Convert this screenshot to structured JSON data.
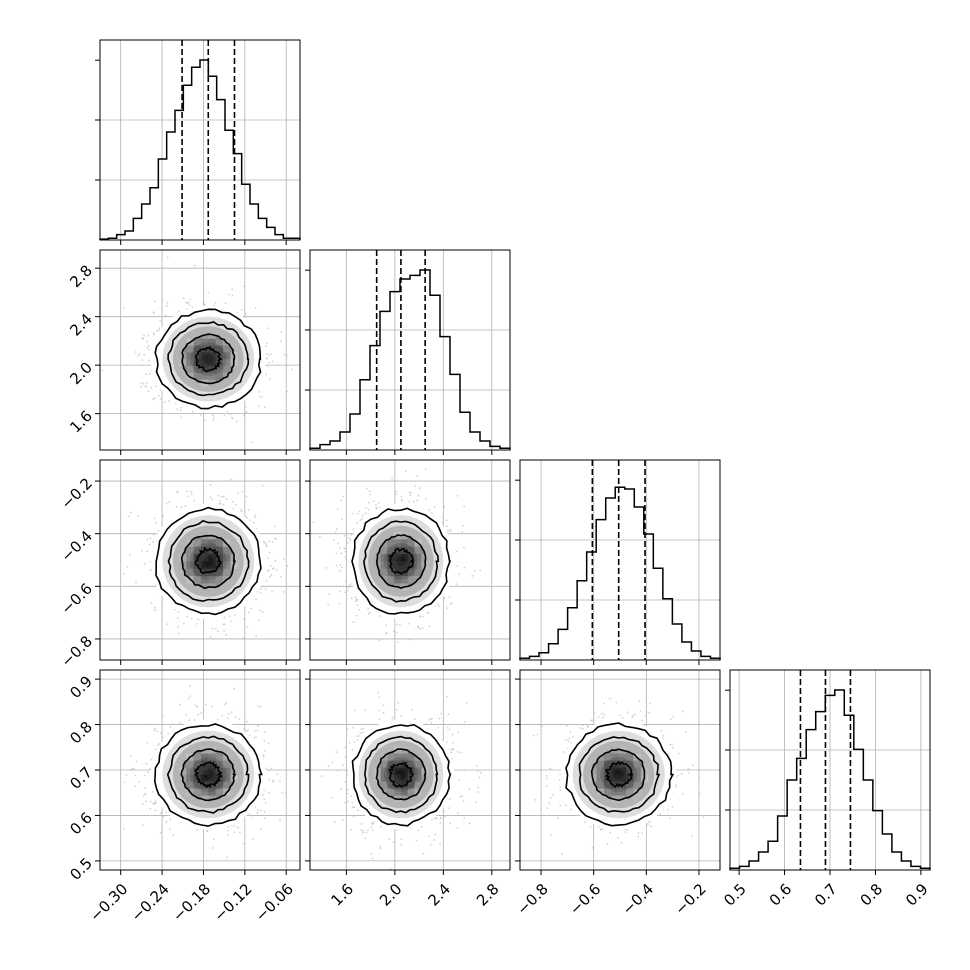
{
  "chart_data": {
    "type": "corner",
    "quantile_lines": "dashed",
    "grid": true,
    "parameters": [
      {
        "range": [
          -0.33,
          -0.04
        ],
        "ticks": [
          "−0.30",
          "−0.24",
          "−0.18",
          "−0.12",
          "−0.06"
        ],
        "tick_values": [
          -0.3,
          -0.24,
          -0.18,
          -0.12,
          -0.06
        ],
        "quantiles": [
          -0.211,
          -0.173,
          -0.135
        ],
        "mean": -0.173,
        "sd": 0.038,
        "histogram": [
          0.005,
          0.01,
          0.03,
          0.05,
          0.12,
          0.2,
          0.29,
          0.45,
          0.6,
          0.72,
          0.86,
          0.96,
          1.0,
          0.91,
          0.78,
          0.61,
          0.48,
          0.31,
          0.2,
          0.12,
          0.07,
          0.03,
          0.01,
          0.01
        ]
      },
      {
        "range": [
          1.3,
          2.95
        ],
        "ticks": [
          "1.6",
          "2.0",
          "2.4",
          "2.8"
        ],
        "tick_values": [
          1.6,
          2.0,
          2.4,
          2.8
        ],
        "quantiles": [
          1.85,
          2.05,
          2.25
        ],
        "mean": 2.05,
        "sd": 0.2,
        "histogram": [
          0.01,
          0.03,
          0.05,
          0.1,
          0.2,
          0.39,
          0.58,
          0.77,
          0.88,
          0.95,
          0.97,
          1.0,
          0.86,
          0.63,
          0.42,
          0.21,
          0.1,
          0.05,
          0.02,
          0.01
        ]
      },
      {
        "range": [
          -0.88,
          -0.12
        ],
        "ticks": [
          "−0.8",
          "−0.6",
          "−0.4",
          "−0.2"
        ],
        "tick_values": [
          -0.8,
          -0.6,
          -0.4,
          -0.2
        ],
        "quantiles": [
          -0.605,
          -0.505,
          -0.405
        ],
        "mean": -0.505,
        "sd": 0.1,
        "histogram": [
          0.01,
          0.02,
          0.04,
          0.09,
          0.17,
          0.29,
          0.44,
          0.6,
          0.78,
          0.9,
          0.96,
          0.95,
          0.85,
          0.7,
          0.51,
          0.34,
          0.2,
          0.1,
          0.05,
          0.02,
          0.01
        ]
      },
      {
        "range": [
          0.48,
          0.92
        ],
        "ticks": [
          "0.5",
          "0.6",
          "0.7",
          "0.8",
          "0.9"
        ],
        "tick_values": [
          0.5,
          0.6,
          0.7,
          0.8,
          0.9
        ],
        "quantiles": [
          0.635,
          0.69,
          0.745
        ],
        "mean": 0.69,
        "sd": 0.055,
        "histogram": [
          0.01,
          0.02,
          0.05,
          0.1,
          0.16,
          0.3,
          0.5,
          0.62,
          0.78,
          0.88,
          0.97,
          1.0,
          0.86,
          0.67,
          0.5,
          0.33,
          0.2,
          0.1,
          0.05,
          0.02,
          0.01
        ]
      }
    ],
    "y_tick_labels": {
      "row1": [
        "2.8",
        "2.4",
        "2.0",
        "1.6"
      ],
      "row2": [
        "−0.2",
        "−0.4",
        "−0.6",
        "−0.8"
      ],
      "row3": [
        "0.9",
        "0.8",
        "0.7",
        "0.6",
        "0.5"
      ]
    },
    "colors": {
      "line": "#000000",
      "grid": "#b0b0b0",
      "scatter": "#bdbdbd",
      "density": [
        "#ffffff",
        "#dedede",
        "#b4b4b4",
        "#868686",
        "#5c5c5c",
        "#2e2e2e",
        "#111111"
      ]
    }
  }
}
